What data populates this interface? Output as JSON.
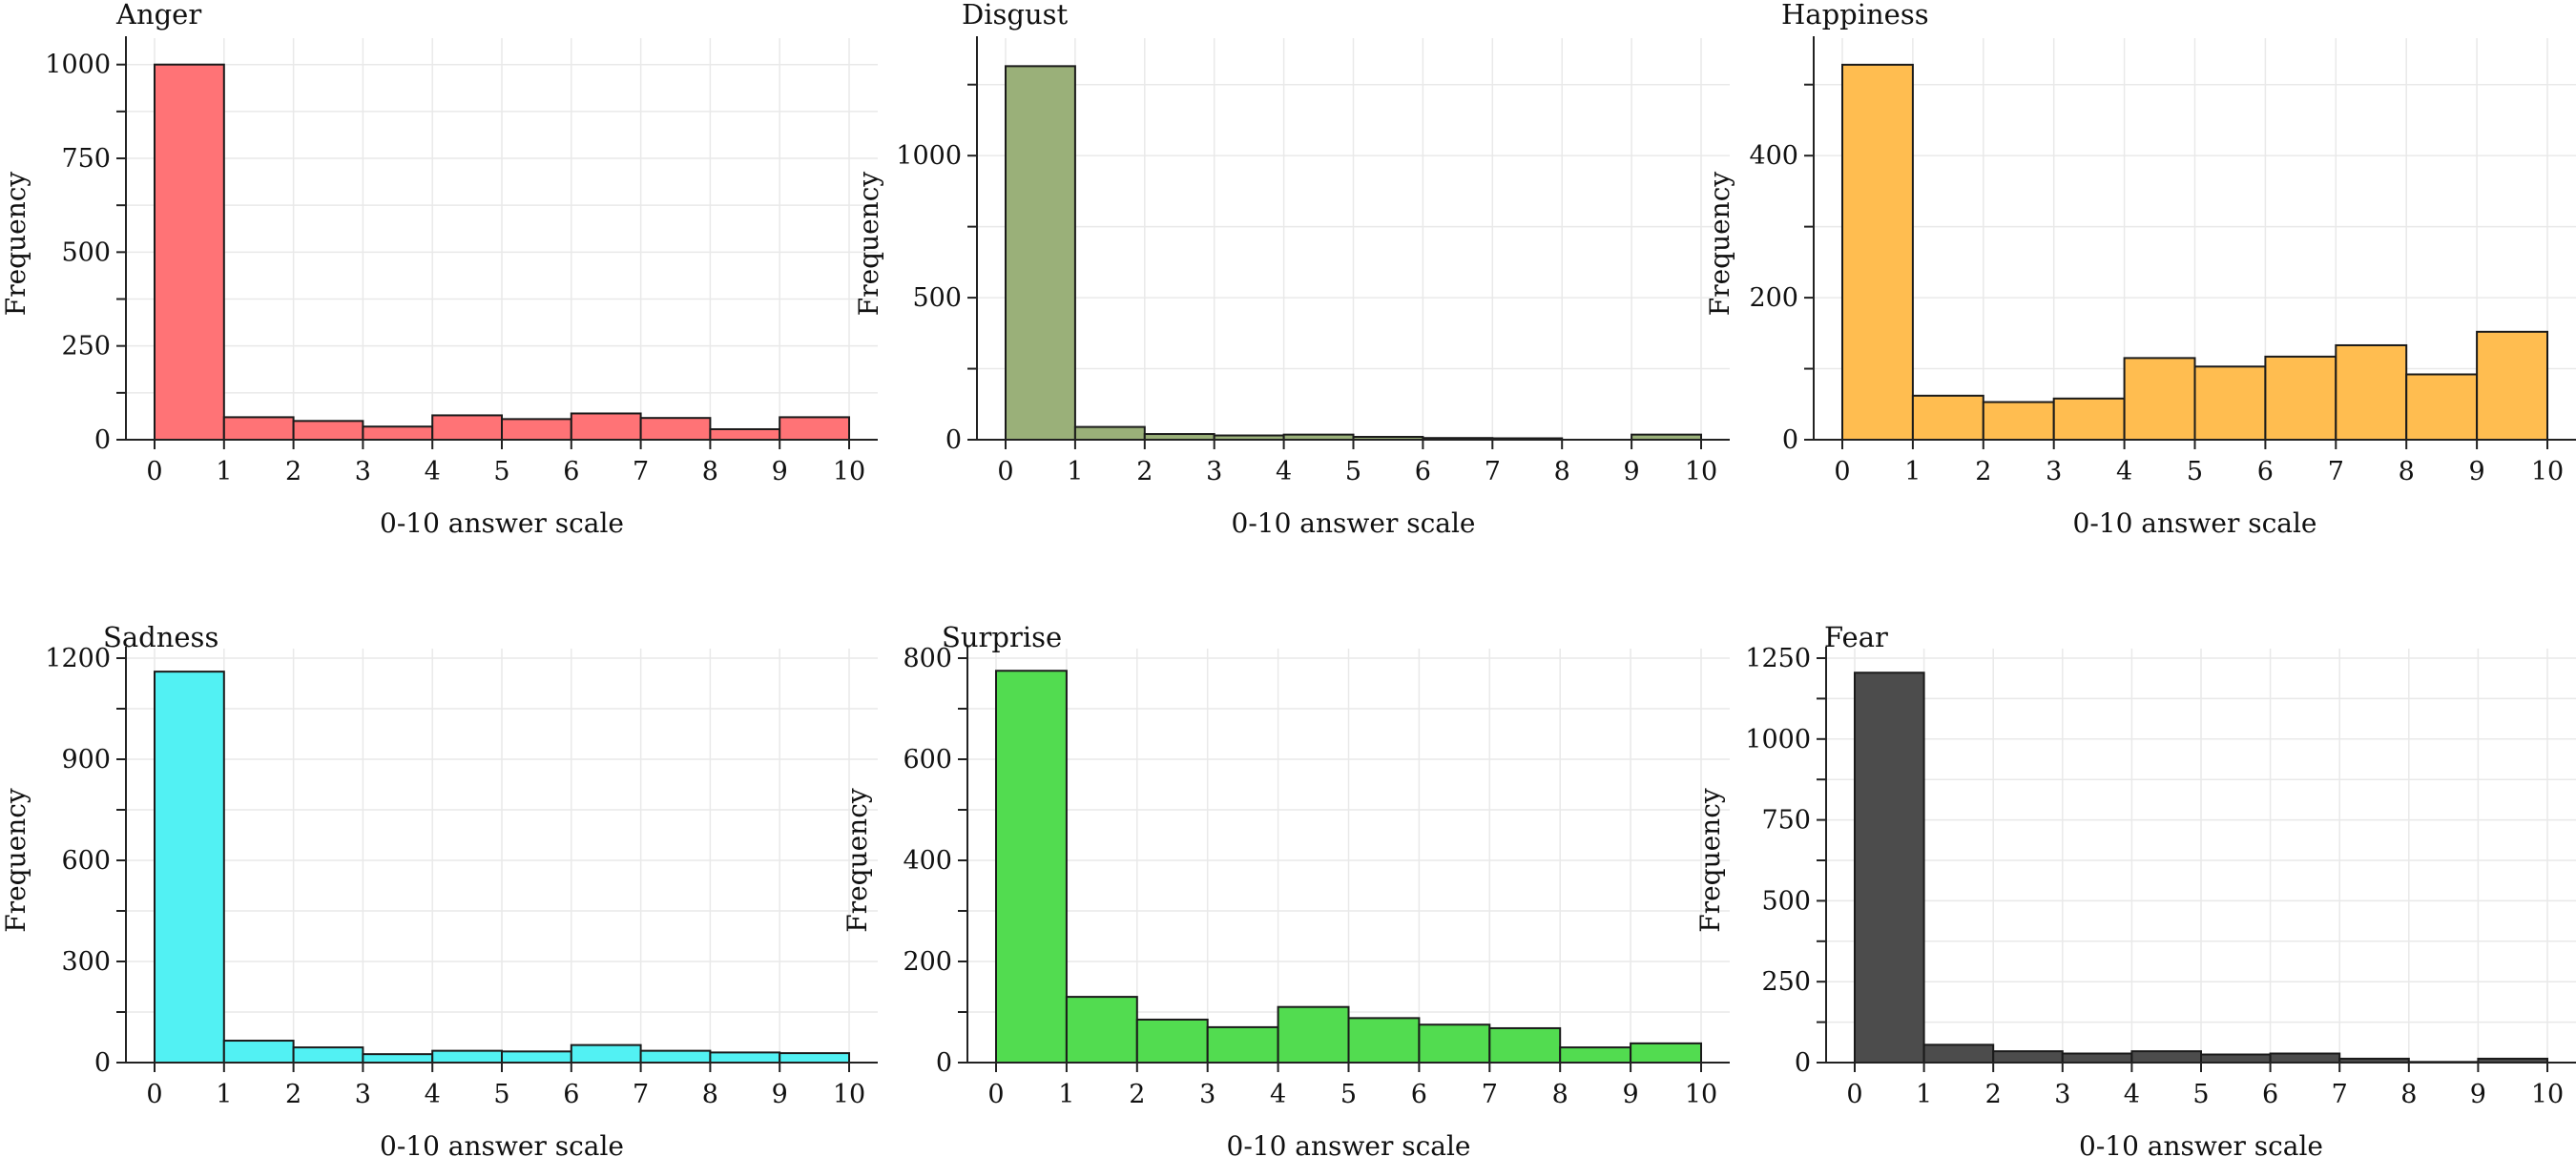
{
  "figure": {
    "shared_xlabel": "0-10 answer scale",
    "shared_ylabel": "Frequency"
  },
  "chart_data": [
    {
      "type": "bar",
      "title": "Anger",
      "xlabel": "0-10 answer scale",
      "ylabel": "Frequency",
      "color": "#FF7073",
      "bins": [
        [
          0,
          1
        ],
        [
          1,
          2
        ],
        [
          2,
          3
        ],
        [
          3,
          4
        ],
        [
          4,
          5
        ],
        [
          5,
          6
        ],
        [
          6,
          7
        ],
        [
          7,
          8
        ],
        [
          8,
          9
        ],
        [
          9,
          10
        ]
      ],
      "values": [
        1000,
        60,
        50,
        35,
        65,
        55,
        70,
        58,
        28,
        60
      ],
      "xticks": [
        0,
        1,
        2,
        3,
        4,
        5,
        6,
        7,
        8,
        9,
        10
      ],
      "yticks": [
        0,
        250,
        500,
        750,
        1000
      ],
      "xlim": [
        0,
        10
      ],
      "ylim": [
        0,
        1045
      ]
    },
    {
      "type": "bar",
      "title": "Disgust",
      "xlabel": "0-10 answer scale",
      "ylabel": "Frequency",
      "color": "#98AE76",
      "bins": [
        [
          0,
          1
        ],
        [
          1,
          2
        ],
        [
          2,
          3
        ],
        [
          3,
          4
        ],
        [
          4,
          5
        ],
        [
          5,
          6
        ],
        [
          6,
          7
        ],
        [
          7,
          8
        ],
        [
          8,
          9
        ],
        [
          9,
          10
        ]
      ],
      "values": [
        1315,
        45,
        20,
        15,
        18,
        10,
        6,
        5,
        0,
        18
      ],
      "xticks": [
        0,
        1,
        2,
        3,
        4,
        5,
        6,
        7,
        8,
        9,
        10
      ],
      "yticks": [
        0,
        500,
        1000
      ],
      "xlim": [
        0,
        10
      ],
      "ylim": [
        0,
        1380
      ]
    },
    {
      "type": "bar",
      "title": "Happiness",
      "xlabel": "0-10 answer scale",
      "ylabel": "Frequency",
      "color": "#FFBC4D",
      "bins": [
        [
          0,
          1
        ],
        [
          1,
          2
        ],
        [
          2,
          3
        ],
        [
          3,
          4
        ],
        [
          4,
          5
        ],
        [
          5,
          6
        ],
        [
          6,
          7
        ],
        [
          7,
          8
        ],
        [
          8,
          9
        ],
        [
          9,
          10
        ]
      ],
      "values": [
        528,
        62,
        53,
        58,
        115,
        103,
        117,
        133,
        92,
        152
      ],
      "xticks": [
        0,
        1,
        2,
        3,
        4,
        5,
        6,
        7,
        8,
        9,
        10
      ],
      "yticks": [
        0,
        200,
        400
      ],
      "xlim": [
        0,
        10
      ],
      "ylim": [
        0,
        552
      ]
    },
    {
      "type": "bar",
      "title": "Sadness",
      "xlabel": "0-10 answer scale",
      "ylabel": "Frequency",
      "color": "#4FF1F3",
      "bins": [
        [
          0,
          1
        ],
        [
          1,
          2
        ],
        [
          2,
          3
        ],
        [
          3,
          4
        ],
        [
          4,
          5
        ],
        [
          5,
          6
        ],
        [
          6,
          7
        ],
        [
          7,
          8
        ],
        [
          8,
          9
        ],
        [
          9,
          10
        ]
      ],
      "values": [
        1160,
        65,
        45,
        25,
        35,
        33,
        52,
        35,
        30,
        28
      ],
      "xticks": [
        0,
        1,
        2,
        3,
        4,
        5,
        6,
        7,
        8,
        9,
        10
      ],
      "yticks": [
        0,
        300,
        600,
        900,
        1200
      ],
      "xlim": [
        0,
        10
      ],
      "ylim": [
        0,
        1200
      ]
    },
    {
      "type": "bar",
      "title": "Surprise",
      "xlabel": "0-10 answer scale",
      "ylabel": "Frequency",
      "color": "#4FDB4D",
      "bins": [
        [
          0,
          1
        ],
        [
          1,
          2
        ],
        [
          2,
          3
        ],
        [
          3,
          4
        ],
        [
          4,
          5
        ],
        [
          5,
          6
        ],
        [
          6,
          7
        ],
        [
          7,
          8
        ],
        [
          8,
          9
        ],
        [
          9,
          10
        ]
      ],
      "values": [
        775,
        130,
        85,
        70,
        110,
        88,
        75,
        68,
        30,
        38
      ],
      "xticks": [
        0,
        1,
        2,
        3,
        4,
        5,
        6,
        7,
        8,
        9,
        10
      ],
      "yticks": [
        0,
        200,
        400,
        600,
        800
      ],
      "xlim": [
        0,
        10
      ],
      "ylim": [
        0,
        800
      ]
    },
    {
      "type": "bar",
      "title": "Fear",
      "xlabel": "0-10 answer scale",
      "ylabel": "Frequency",
      "color": "#484848",
      "bins": [
        [
          0,
          1
        ],
        [
          1,
          2
        ],
        [
          2,
          3
        ],
        [
          3,
          4
        ],
        [
          4,
          5
        ],
        [
          5,
          6
        ],
        [
          6,
          7
        ],
        [
          7,
          8
        ],
        [
          8,
          9
        ],
        [
          9,
          10
        ]
      ],
      "values": [
        1205,
        55,
        35,
        28,
        35,
        25,
        28,
        12,
        2,
        12
      ],
      "xticks": [
        0,
        1,
        2,
        3,
        4,
        5,
        6,
        7,
        8,
        9,
        10
      ],
      "yticks": [
        0,
        250,
        500,
        750,
        1000,
        1250
      ],
      "xlim": [
        0,
        10
      ],
      "ylim": [
        0,
        1250
      ]
    }
  ]
}
